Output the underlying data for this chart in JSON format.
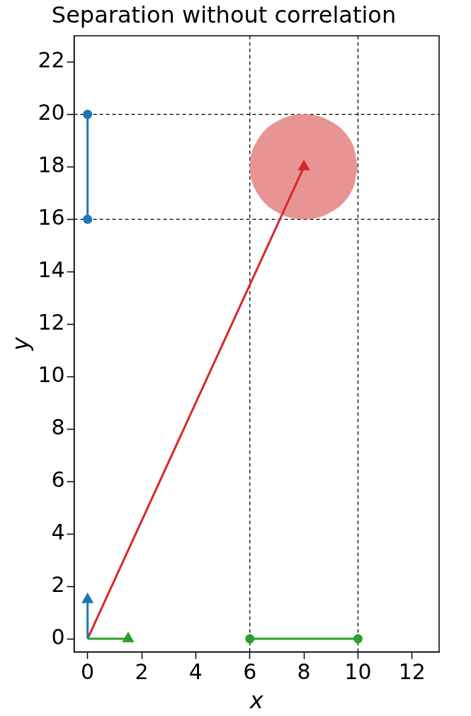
{
  "chart_data": {
    "type": "line",
    "title": "Separation without correlation",
    "xlabel": "x",
    "ylabel": "y",
    "xlim": [
      -0.5,
      13
    ],
    "ylim": [
      -0.5,
      23
    ],
    "xticks": [
      0,
      2,
      4,
      6,
      8,
      10,
      12
    ],
    "yticks": [
      0,
      2,
      4,
      6,
      8,
      10,
      12,
      14,
      16,
      18,
      20,
      22
    ],
    "grid": false,
    "legend": false,
    "ref_lines": [
      {
        "axis": "x",
        "value": 6,
        "color": "#000000",
        "line_style": "dashed"
      },
      {
        "axis": "x",
        "value": 10,
        "color": "#000000",
        "line_style": "dashed"
      },
      {
        "axis": "y",
        "value": 16,
        "color": "#000000",
        "line_style": "dashed"
      },
      {
        "axis": "y",
        "value": 20,
        "color": "#000000",
        "line_style": "dashed"
      }
    ],
    "series": [
      {
        "type": "area",
        "color": "#e99494",
        "marker": "none",
        "x": [
          10,
          9.73,
          9,
          8,
          7,
          6.27,
          6,
          6.27,
          7,
          8,
          9,
          9.73,
          10
        ],
        "values": [
          18,
          19,
          19.73,
          20,
          19.73,
          19,
          18,
          17,
          16.27,
          16,
          16.27,
          17,
          18
        ]
      },
      {
        "color": "#1f77b4",
        "marker": "circle",
        "x": [
          0,
          0
        ],
        "values": [
          16,
          20
        ]
      },
      {
        "color": "#2ca02c",
        "marker": "circle",
        "x": [
          6,
          10
        ],
        "values": [
          0,
          0
        ]
      },
      {
        "color": "#d62728",
        "marker": "triangle",
        "x": [
          0,
          8
        ],
        "values": [
          0,
          18
        ]
      },
      {
        "color": "#1f77b4",
        "marker": "triangle",
        "x": [
          0,
          0
        ],
        "values": [
          0,
          1.5
        ]
      },
      {
        "color": "#2ca02c",
        "marker": "triangle",
        "x": [
          0,
          1.5
        ],
        "values": [
          0,
          0
        ]
      }
    ]
  }
}
